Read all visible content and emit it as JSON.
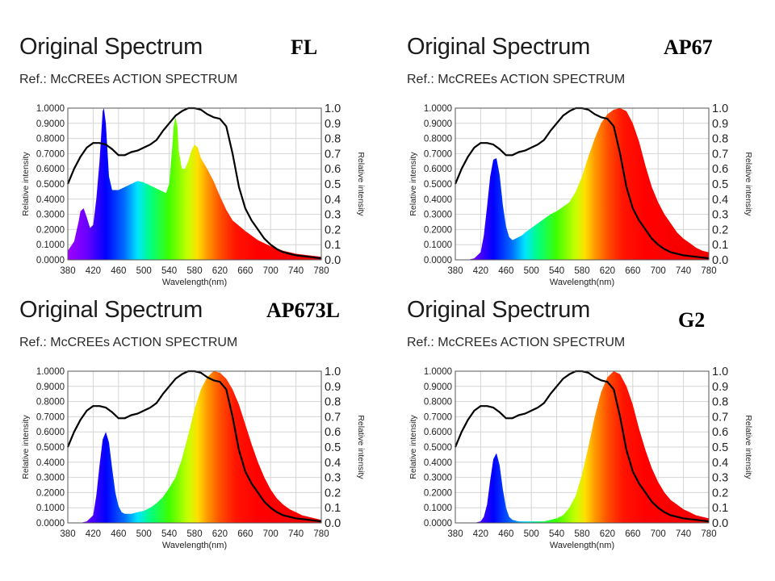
{
  "chart_data": [
    {
      "type": "area",
      "title": "Original Spectrum",
      "subtitle": "Ref.: McCREEs ACTION SPECTRUM",
      "label": "FL",
      "xlabel": "Wavelength(nm)",
      "ylabel_left": "Relative intensity",
      "ylabel_right": "Relative intensity",
      "xlim": [
        380,
        780
      ],
      "ylim_left": [
        0,
        1
      ],
      "ylim_right": [
        0,
        1
      ],
      "grid": true,
      "x_ticks": [
        "380",
        "420",
        "460",
        "500",
        "540",
        "580",
        "620",
        "660",
        "700",
        "740",
        "780"
      ],
      "y_ticks_left": [
        "0.0000",
        "0.1000",
        "0.2000",
        "0.3000",
        "0.4000",
        "0.5000",
        "0.6000",
        "0.7000",
        "0.8000",
        "0.9000",
        "1.0000"
      ],
      "y_ticks_right": [
        "0.0",
        "0.1",
        "0.2",
        "0.3",
        "0.4",
        "0.5",
        "0.6",
        "0.7",
        "0.8",
        "0.9",
        "1.0"
      ],
      "series": [
        {
          "kind": "spectrum",
          "x": [
            380,
            390,
            397,
            400,
            405,
            410,
            415,
            420,
            425,
            430,
            435,
            437,
            440,
            445,
            450,
            460,
            470,
            480,
            490,
            500,
            510,
            520,
            530,
            535,
            540,
            545,
            547,
            550,
            553,
            555,
            560,
            565,
            570,
            575,
            580,
            585,
            590,
            600,
            610,
            620,
            630,
            640,
            660,
            680,
            700,
            720,
            740,
            760,
            780
          ],
          "y": [
            0.06,
            0.12,
            0.25,
            0.32,
            0.34,
            0.28,
            0.21,
            0.23,
            0.4,
            0.65,
            0.98,
            1.0,
            0.9,
            0.55,
            0.46,
            0.46,
            0.48,
            0.5,
            0.52,
            0.51,
            0.49,
            0.47,
            0.45,
            0.44,
            0.5,
            0.75,
            0.88,
            0.94,
            0.88,
            0.72,
            0.6,
            0.6,
            0.65,
            0.72,
            0.76,
            0.74,
            0.67,
            0.6,
            0.52,
            0.42,
            0.33,
            0.26,
            0.19,
            0.13,
            0.09,
            0.06,
            0.04,
            0.03,
            0.02
          ]
        },
        {
          "kind": "action",
          "x": [
            380,
            390,
            400,
            410,
            420,
            430,
            440,
            450,
            460,
            470,
            480,
            490,
            500,
            510,
            520,
            530,
            540,
            550,
            560,
            570,
            580,
            590,
            600,
            610,
            620,
            630,
            640,
            650,
            660,
            670,
            680,
            690,
            700,
            710,
            720,
            730,
            740,
            750,
            760,
            770,
            780
          ],
          "y": [
            0.5,
            0.6,
            0.68,
            0.74,
            0.77,
            0.77,
            0.76,
            0.73,
            0.69,
            0.69,
            0.71,
            0.72,
            0.74,
            0.76,
            0.79,
            0.85,
            0.9,
            0.95,
            0.98,
            1.0,
            1.0,
            0.99,
            0.96,
            0.94,
            0.93,
            0.88,
            0.7,
            0.48,
            0.34,
            0.26,
            0.2,
            0.14,
            0.1,
            0.07,
            0.05,
            0.04,
            0.03,
            0.025,
            0.02,
            0.015,
            0.01
          ]
        }
      ]
    },
    {
      "type": "area",
      "title": "Original Spectrum",
      "subtitle": "Ref.: McCREEs ACTION SPECTRUM",
      "label": "AP67",
      "xlabel": "Wavelength(nm)",
      "ylabel_left": "Relative intensity",
      "ylabel_right": "Relative intensity",
      "xlim": [
        380,
        780
      ],
      "ylim_left": [
        0,
        1
      ],
      "ylim_right": [
        0,
        1
      ],
      "grid": true,
      "x_ticks": [
        "380",
        "420",
        "460",
        "500",
        "540",
        "580",
        "620",
        "660",
        "700",
        "740",
        "780"
      ],
      "y_ticks_left": [
        "0.0000",
        "0.1000",
        "0.2000",
        "0.3000",
        "0.4000",
        "0.5000",
        "0.6000",
        "0.7000",
        "0.8000",
        "0.9000",
        "1.0000"
      ],
      "y_ticks_right": [
        "0.0",
        "0.1",
        "0.2",
        "0.3",
        "0.4",
        "0.5",
        "0.6",
        "0.7",
        "0.8",
        "0.9",
        "1.0"
      ],
      "series": [
        {
          "kind": "spectrum",
          "x": [
            380,
            400,
            410,
            420,
            425,
            430,
            435,
            440,
            445,
            450,
            455,
            460,
            465,
            470,
            475,
            480,
            485,
            490,
            500,
            510,
            520,
            530,
            540,
            550,
            560,
            570,
            580,
            590,
            600,
            610,
            620,
            630,
            640,
            650,
            660,
            670,
            680,
            690,
            700,
            710,
            720,
            730,
            740,
            750,
            760,
            770,
            780
          ],
          "y": [
            0.0,
            0.0,
            0.01,
            0.05,
            0.16,
            0.35,
            0.55,
            0.66,
            0.67,
            0.56,
            0.36,
            0.22,
            0.15,
            0.13,
            0.14,
            0.15,
            0.16,
            0.18,
            0.21,
            0.24,
            0.27,
            0.3,
            0.32,
            0.35,
            0.38,
            0.45,
            0.55,
            0.68,
            0.8,
            0.9,
            0.96,
            0.99,
            1.0,
            0.98,
            0.9,
            0.78,
            0.62,
            0.48,
            0.38,
            0.3,
            0.24,
            0.18,
            0.14,
            0.11,
            0.08,
            0.06,
            0.05
          ]
        },
        {
          "kind": "action",
          "x": [
            380,
            390,
            400,
            410,
            420,
            430,
            440,
            450,
            460,
            470,
            480,
            490,
            500,
            510,
            520,
            530,
            540,
            550,
            560,
            570,
            580,
            590,
            600,
            610,
            620,
            630,
            640,
            650,
            660,
            670,
            680,
            690,
            700,
            710,
            720,
            730,
            740,
            750,
            760,
            770,
            780
          ],
          "y": [
            0.5,
            0.6,
            0.68,
            0.74,
            0.77,
            0.77,
            0.76,
            0.73,
            0.69,
            0.69,
            0.71,
            0.72,
            0.74,
            0.76,
            0.79,
            0.85,
            0.9,
            0.95,
            0.98,
            1.0,
            1.0,
            0.99,
            0.96,
            0.94,
            0.93,
            0.88,
            0.7,
            0.48,
            0.34,
            0.26,
            0.2,
            0.14,
            0.1,
            0.07,
            0.05,
            0.04,
            0.03,
            0.025,
            0.02,
            0.015,
            0.01
          ]
        }
      ]
    },
    {
      "type": "area",
      "title": "Original Spectrum",
      "subtitle": "Ref.: McCREEs ACTION SPECTRUM",
      "label": "AP673L",
      "xlabel": "Wavelength(nm)",
      "ylabel_left": "Relative intensity",
      "ylabel_right": "Relative intensity",
      "xlim": [
        380,
        780
      ],
      "ylim_left": [
        0,
        1
      ],
      "ylim_right": [
        0,
        1
      ],
      "grid": true,
      "x_ticks": [
        "380",
        "420",
        "460",
        "500",
        "540",
        "580",
        "620",
        "660",
        "700",
        "740",
        "780"
      ],
      "y_ticks_left": [
        "0.0000",
        "0.1000",
        "0.2000",
        "0.3000",
        "0.4000",
        "0.5000",
        "0.6000",
        "0.7000",
        "0.8000",
        "0.9000",
        "1.0000"
      ],
      "y_ticks_right": [
        "0.0",
        "0.1",
        "0.2",
        "0.3",
        "0.4",
        "0.5",
        "0.6",
        "0.7",
        "0.8",
        "0.9",
        "1.0"
      ],
      "series": [
        {
          "kind": "spectrum",
          "x": [
            380,
            400,
            410,
            420,
            425,
            430,
            435,
            440,
            445,
            450,
            455,
            460,
            465,
            470,
            475,
            480,
            490,
            500,
            510,
            520,
            530,
            540,
            550,
            560,
            570,
            580,
            590,
            600,
            610,
            620,
            630,
            640,
            650,
            660,
            670,
            680,
            690,
            700,
            710,
            720,
            730,
            740,
            750,
            760,
            770,
            780
          ],
          "y": [
            0.0,
            0.0,
            0.01,
            0.05,
            0.18,
            0.38,
            0.55,
            0.6,
            0.53,
            0.36,
            0.2,
            0.11,
            0.07,
            0.06,
            0.06,
            0.06,
            0.07,
            0.08,
            0.1,
            0.13,
            0.17,
            0.23,
            0.3,
            0.42,
            0.58,
            0.75,
            0.88,
            0.96,
            1.0,
            0.99,
            0.95,
            0.88,
            0.78,
            0.65,
            0.52,
            0.4,
            0.3,
            0.22,
            0.16,
            0.12,
            0.09,
            0.07,
            0.05,
            0.04,
            0.03,
            0.02
          ]
        },
        {
          "kind": "action",
          "x": [
            380,
            390,
            400,
            410,
            420,
            430,
            440,
            450,
            460,
            470,
            480,
            490,
            500,
            510,
            520,
            530,
            540,
            550,
            560,
            570,
            580,
            590,
            600,
            610,
            620,
            630,
            640,
            650,
            660,
            670,
            680,
            690,
            700,
            710,
            720,
            730,
            740,
            750,
            760,
            770,
            780
          ],
          "y": [
            0.5,
            0.6,
            0.68,
            0.74,
            0.77,
            0.77,
            0.76,
            0.73,
            0.69,
            0.69,
            0.71,
            0.72,
            0.74,
            0.76,
            0.79,
            0.85,
            0.9,
            0.95,
            0.98,
            1.0,
            1.0,
            0.99,
            0.96,
            0.94,
            0.93,
            0.88,
            0.7,
            0.48,
            0.34,
            0.26,
            0.2,
            0.14,
            0.1,
            0.07,
            0.05,
            0.04,
            0.03,
            0.025,
            0.02,
            0.015,
            0.01
          ]
        }
      ]
    },
    {
      "type": "area",
      "title": "Original Spectrum",
      "subtitle": "Ref.: McCREEs ACTION SPECTRUM",
      "label": "G2",
      "xlabel": "Wavelength(nm)",
      "ylabel_left": "Relative intensity",
      "ylabel_right": "Relative intensity",
      "xlim": [
        380,
        780
      ],
      "ylim_left": [
        0,
        1
      ],
      "ylim_right": [
        0,
        1
      ],
      "grid": true,
      "x_ticks": [
        "380",
        "420",
        "460",
        "500",
        "540",
        "580",
        "620",
        "660",
        "700",
        "740",
        "780"
      ],
      "y_ticks_left": [
        "0.0000",
        "0.1000",
        "0.2000",
        "0.3000",
        "0.4000",
        "0.5000",
        "0.6000",
        "0.7000",
        "0.8000",
        "0.9000",
        "1.0000"
      ],
      "y_ticks_right": [
        "0.0",
        "0.1",
        "0.2",
        "0.3",
        "0.4",
        "0.5",
        "0.6",
        "0.7",
        "0.8",
        "0.9",
        "1.0"
      ],
      "series": [
        {
          "kind": "spectrum",
          "x": [
            380,
            410,
            420,
            425,
            430,
            435,
            440,
            445,
            450,
            455,
            460,
            465,
            470,
            480,
            490,
            500,
            510,
            520,
            530,
            540,
            550,
            560,
            570,
            580,
            590,
            600,
            610,
            620,
            630,
            640,
            650,
            660,
            670,
            680,
            690,
            700,
            710,
            720,
            730,
            740,
            750,
            760,
            770,
            780
          ],
          "y": [
            0.0,
            0.0,
            0.01,
            0.04,
            0.12,
            0.28,
            0.42,
            0.46,
            0.38,
            0.22,
            0.1,
            0.04,
            0.02,
            0.01,
            0.01,
            0.01,
            0.01,
            0.01,
            0.02,
            0.03,
            0.05,
            0.1,
            0.18,
            0.32,
            0.5,
            0.7,
            0.86,
            0.96,
            1.0,
            0.98,
            0.9,
            0.78,
            0.62,
            0.48,
            0.36,
            0.27,
            0.2,
            0.15,
            0.12,
            0.09,
            0.07,
            0.05,
            0.04,
            0.03
          ]
        },
        {
          "kind": "action",
          "x": [
            380,
            390,
            400,
            410,
            420,
            430,
            440,
            450,
            460,
            470,
            480,
            490,
            500,
            510,
            520,
            530,
            540,
            550,
            560,
            570,
            580,
            590,
            600,
            610,
            620,
            630,
            640,
            650,
            660,
            670,
            680,
            690,
            700,
            710,
            720,
            730,
            740,
            750,
            760,
            770,
            780
          ],
          "y": [
            0.5,
            0.6,
            0.68,
            0.74,
            0.77,
            0.77,
            0.76,
            0.73,
            0.69,
            0.69,
            0.71,
            0.72,
            0.74,
            0.76,
            0.79,
            0.85,
            0.9,
            0.95,
            0.98,
            1.0,
            1.0,
            0.99,
            0.96,
            0.94,
            0.93,
            0.88,
            0.7,
            0.48,
            0.34,
            0.26,
            0.2,
            0.14,
            0.1,
            0.07,
            0.05,
            0.04,
            0.03,
            0.025,
            0.02,
            0.015,
            0.01
          ]
        }
      ]
    }
  ]
}
